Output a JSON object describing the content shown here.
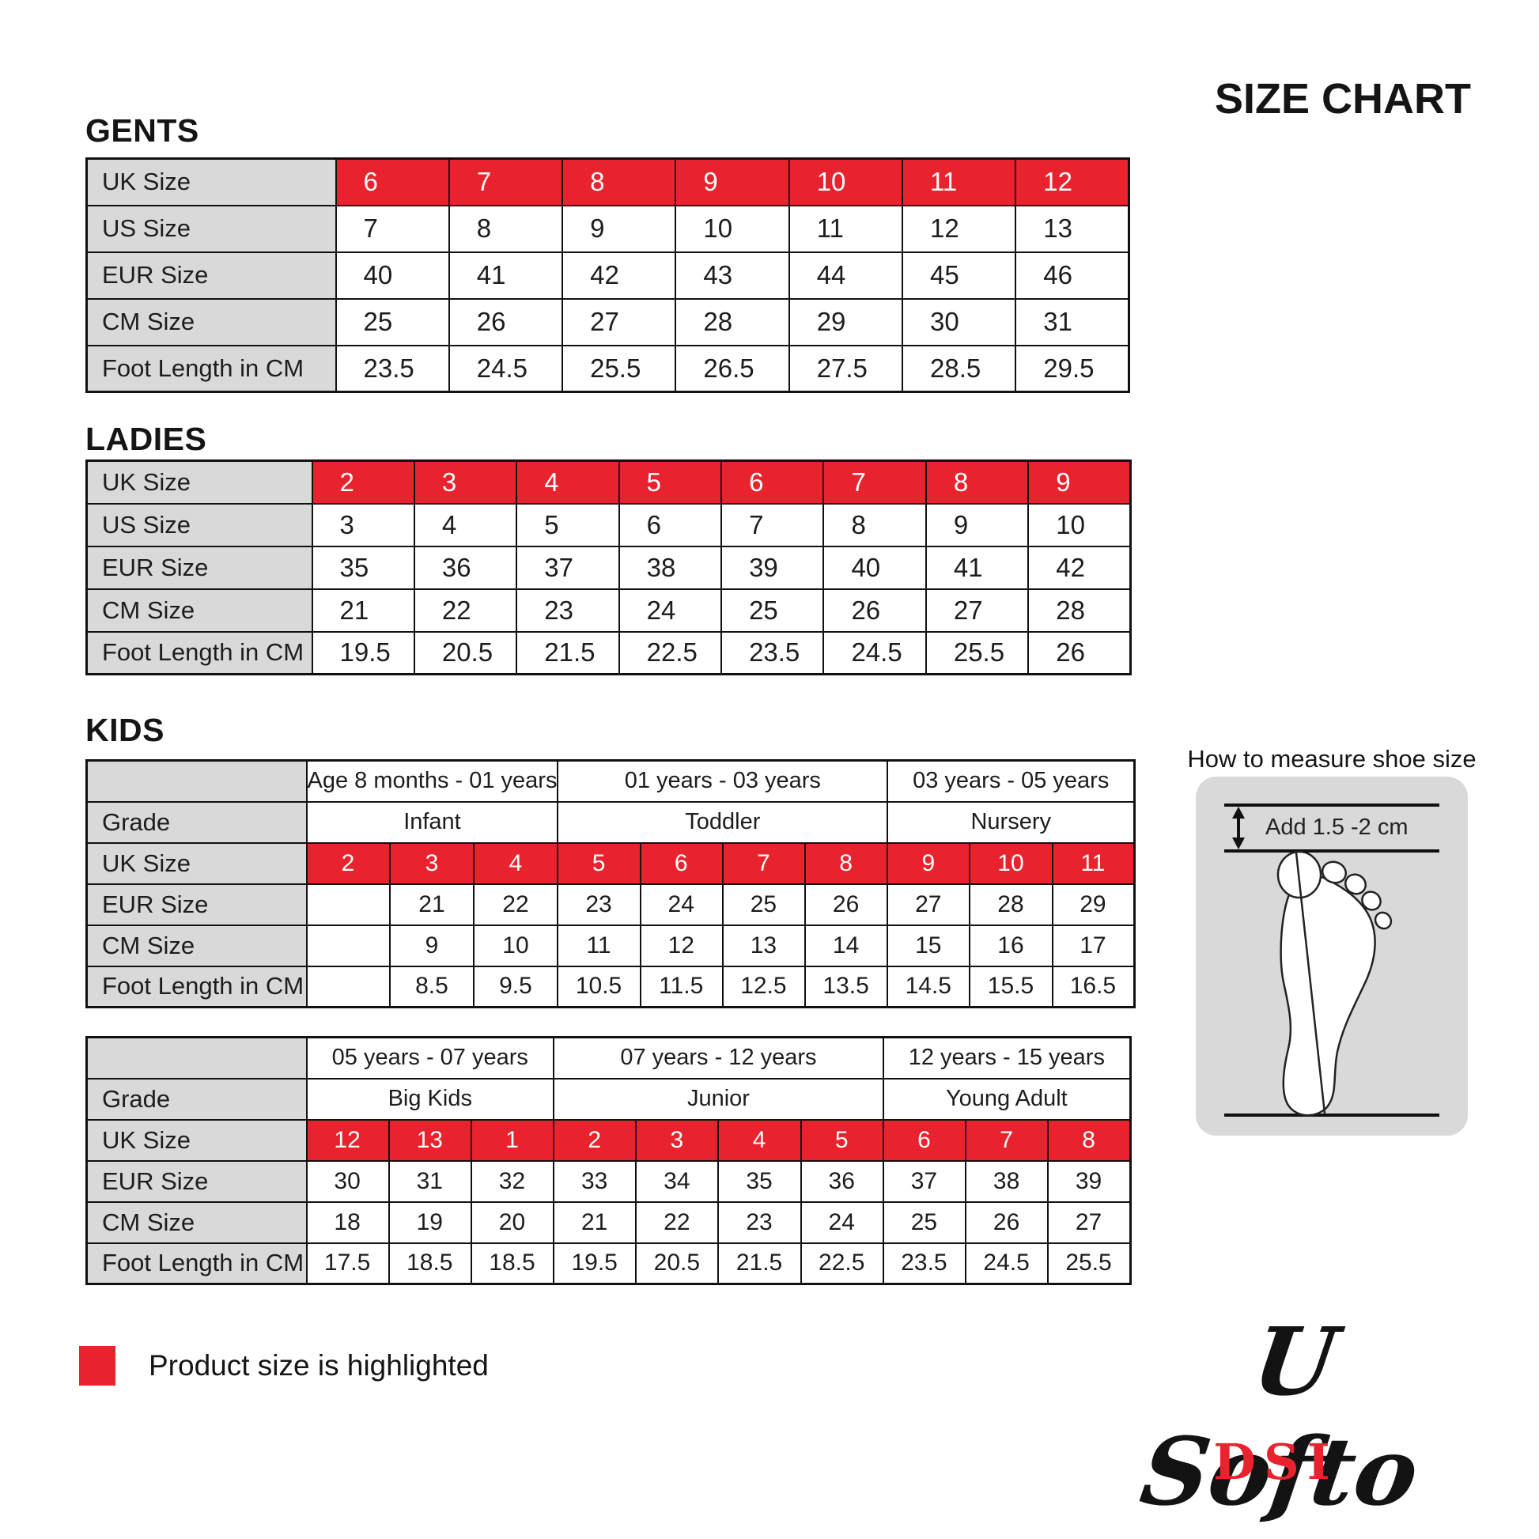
{
  "header": {
    "title": "SIZE CHART"
  },
  "colors": {
    "highlight_red": "#e8232d",
    "label_gray": "#d9d9d9",
    "text": "#1d1d1b"
  },
  "legend": {
    "label": "Product size is highlighted"
  },
  "measure": {
    "title": "How to measure shoe size",
    "note": "Add 1.5 -2 cm"
  },
  "logo": {
    "script": "U Softo",
    "brand": "DSI"
  },
  "tables": {
    "gents": {
      "heading": "GENTS",
      "rows": [
        {
          "label": "UK Size",
          "highlight": true,
          "values": [
            "6",
            "7",
            "8",
            "9",
            "10",
            "11",
            "12"
          ]
        },
        {
          "label": "US Size",
          "values": [
            "7",
            "8",
            "9",
            "10",
            "11",
            "12",
            "13"
          ]
        },
        {
          "label": "EUR Size",
          "values": [
            "40",
            "41",
            "42",
            "43",
            "44",
            "45",
            "46"
          ]
        },
        {
          "label": "CM Size",
          "values": [
            "25",
            "26",
            "27",
            "28",
            "29",
            "30",
            "31"
          ]
        },
        {
          "label": "Foot Length in CM",
          "values": [
            "23.5",
            "24.5",
            "25.5",
            "26.5",
            "27.5",
            "28.5",
            "29.5"
          ]
        }
      ]
    },
    "ladies": {
      "heading": "LADIES",
      "rows": [
        {
          "label": "UK Size",
          "highlight": true,
          "values": [
            "2",
            "3",
            "4",
            "5",
            "6",
            "7",
            "8",
            "9"
          ]
        },
        {
          "label": "US Size",
          "values": [
            "3",
            "4",
            "5",
            "6",
            "7",
            "8",
            "9",
            "10"
          ]
        },
        {
          "label": "EUR Size",
          "values": [
            "35",
            "36",
            "37",
            "38",
            "39",
            "40",
            "41",
            "42"
          ]
        },
        {
          "label": "CM Size",
          "values": [
            "21",
            "22",
            "23",
            "24",
            "25",
            "26",
            "27",
            "28"
          ]
        },
        {
          "label": "Foot Length in CM",
          "values": [
            "19.5",
            "20.5",
            "21.5",
            "22.5",
            "23.5",
            "24.5",
            "25.5",
            "26"
          ]
        }
      ]
    },
    "kids": {
      "heading": "KIDS",
      "grade_row_label": "Grade",
      "upper": {
        "age_groups": [
          {
            "age": "Age 8 months - 01 years",
            "grade": "Infant",
            "span": 3
          },
          {
            "age": "01 years - 03 years",
            "grade": "Toddler",
            "span": 4
          },
          {
            "age": "03 years - 05 years",
            "grade": "Nursery",
            "span": 3
          }
        ],
        "rows": [
          {
            "label": "UK Size",
            "highlight": true,
            "values": [
              "2",
              "3",
              "4",
              "5",
              "6",
              "7",
              "8",
              "9",
              "10",
              "11"
            ]
          },
          {
            "label": "EUR Size",
            "values": [
              "",
              "21",
              "22",
              "23",
              "24",
              "25",
              "26",
              "27",
              "28",
              "29"
            ]
          },
          {
            "label": "CM Size",
            "values": [
              "",
              "9",
              "10",
              "11",
              "12",
              "13",
              "14",
              "15",
              "16",
              "17"
            ]
          },
          {
            "label": "Foot Length in CM",
            "values": [
              "",
              "8.5",
              "9.5",
              "10.5",
              "11.5",
              "12.5",
              "13.5",
              "14.5",
              "15.5",
              "16.5"
            ]
          }
        ]
      },
      "lower": {
        "age_groups": [
          {
            "age": "05 years - 07 years",
            "grade": "Big Kids",
            "span": 3
          },
          {
            "age": "07 years - 12 years",
            "grade": "Junior",
            "span": 4
          },
          {
            "age": "12 years - 15 years",
            "grade": "Young Adult",
            "span": 3
          }
        ],
        "rows": [
          {
            "label": "UK Size",
            "highlight": true,
            "values": [
              "12",
              "13",
              "1",
              "2",
              "3",
              "4",
              "5",
              "6",
              "7",
              "8"
            ]
          },
          {
            "label": "EUR Size",
            "values": [
              "30",
              "31",
              "32",
              "33",
              "34",
              "35",
              "36",
              "37",
              "38",
              "39"
            ]
          },
          {
            "label": "CM Size",
            "values": [
              "18",
              "19",
              "20",
              "21",
              "22",
              "23",
              "24",
              "25",
              "26",
              "27"
            ]
          },
          {
            "label": "Foot Length in CM",
            "values": [
              "17.5",
              "18.5",
              "18.5",
              "19.5",
              "20.5",
              "21.5",
              "22.5",
              "23.5",
              "24.5",
              "25.5"
            ]
          }
        ]
      }
    }
  }
}
